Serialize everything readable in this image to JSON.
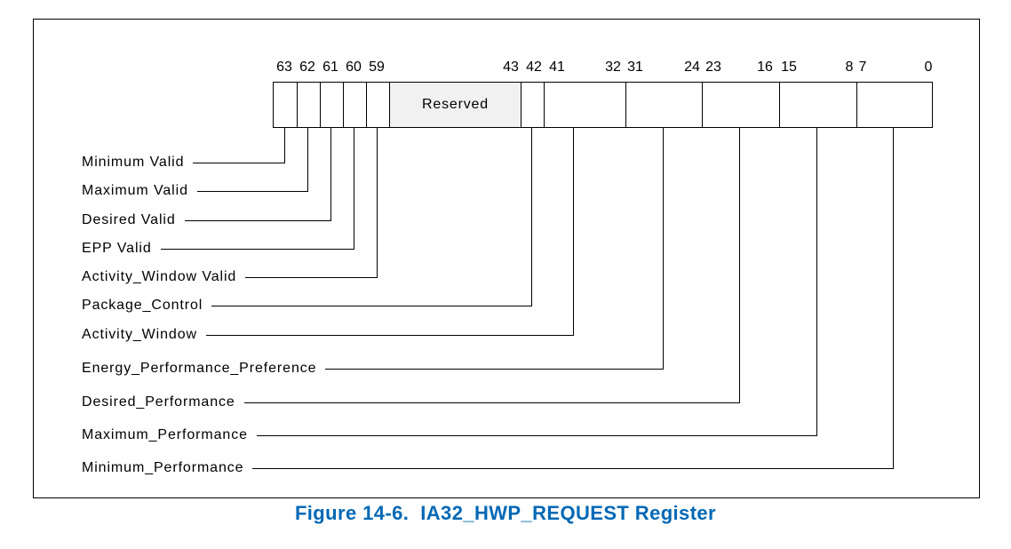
{
  "figure": {
    "caption": "Figure 14-6.  IA32_HWP_REQUEST Register",
    "caption_color": "#0068b5",
    "line_color": "#000000"
  },
  "register": {
    "name": "IA32_HWP_REQUEST",
    "reserved_fill": "#f1f1f1",
    "bit_ticks": [
      "63",
      "62",
      "61",
      "60",
      "59",
      "43",
      "42",
      "41",
      "32",
      "31",
      "24",
      "23",
      "16",
      "15",
      "8",
      "7",
      "0"
    ],
    "fields": [
      {
        "name": "minimum-valid",
        "bits": "63",
        "label": "",
        "shaded": false
      },
      {
        "name": "maximum-valid",
        "bits": "62",
        "label": "",
        "shaded": false
      },
      {
        "name": "desired-valid",
        "bits": "61",
        "label": "",
        "shaded": false
      },
      {
        "name": "epp-valid",
        "bits": "60",
        "label": "",
        "shaded": false
      },
      {
        "name": "activity-window-valid",
        "bits": "59",
        "label": "",
        "shaded": false
      },
      {
        "name": "reserved",
        "bits": "58:43",
        "label": "Reserved",
        "shaded": true
      },
      {
        "name": "package-control",
        "bits": "42",
        "label": "",
        "shaded": false
      },
      {
        "name": "activity-window",
        "bits": "41:32",
        "label": "",
        "shaded": false
      },
      {
        "name": "energy-performance-preference",
        "bits": "31:24",
        "label": "",
        "shaded": false
      },
      {
        "name": "desired-performance",
        "bits": "23:16",
        "label": "",
        "shaded": false
      },
      {
        "name": "maximum-performance",
        "bits": "15:8",
        "label": "",
        "shaded": false
      },
      {
        "name": "minimum-performance",
        "bits": "7:0",
        "label": "",
        "shaded": false
      }
    ],
    "callouts": [
      {
        "label": "Minimum Valid",
        "bits": "63"
      },
      {
        "label": "Maximum Valid",
        "bits": "62"
      },
      {
        "label": "Desired Valid",
        "bits": "61"
      },
      {
        "label": "EPP Valid",
        "bits": "60"
      },
      {
        "label": "Activity_Window Valid",
        "bits": "59"
      },
      {
        "label": "Package_Control",
        "bits": "42"
      },
      {
        "label": "Activity_Window",
        "bits": "41:32"
      },
      {
        "label": "Energy_Performance_Preference",
        "bits": "31:24"
      },
      {
        "label": "Desired_Performance",
        "bits": "23:16"
      },
      {
        "label": "Maximum_Performance",
        "bits": "15:8"
      },
      {
        "label": "Minimum_Performance",
        "bits": "7:0"
      }
    ]
  }
}
